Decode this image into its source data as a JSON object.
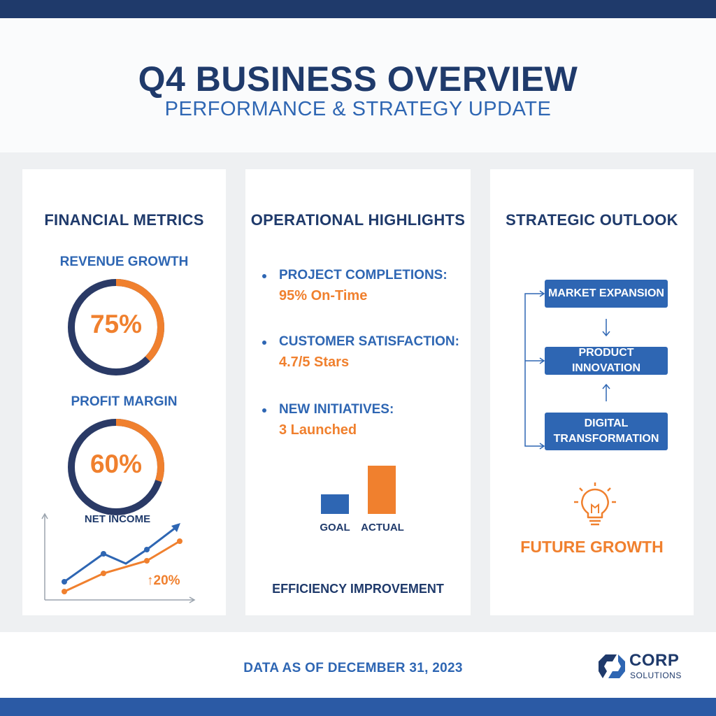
{
  "header": {
    "title": "Q4 BUSINESS OVERVIEW",
    "subtitle": "PERFORMANCE & STRATEGY UPDATE"
  },
  "financial": {
    "heading": "FINANCIAL METRICS",
    "revenue_label": "REVENUE GROWTH",
    "revenue_value": "75%",
    "revenue_fraction": 0.75,
    "profit_label": "PROFIT MARGIN",
    "profit_value": "60%",
    "profit_fraction": 0.6,
    "net_income_label": "NET INCOME",
    "net_income_change": "↑20%"
  },
  "operational": {
    "heading": "OPERATIONAL HIGHLIGHTS",
    "items": [
      {
        "label": "PROJECT COMPLETIONS:",
        "value": "95% On-Time"
      },
      {
        "label": "CUSTOMER SATISFACTION:",
        "value": "4.7/5 Stars"
      },
      {
        "label": "NEW INITIATIVES:",
        "value": "3 Launched"
      }
    ],
    "bar_labels": [
      "GOAL",
      "ACTUAL"
    ],
    "caption": "EFFICIENCY IMPROVEMENT"
  },
  "strategic": {
    "heading": "STRATEGIC OUTLOOK",
    "steps": [
      "MARKET EXPANSION",
      "PRODUCT INNOVATION",
      "DIGITAL TRANSFORMATION"
    ],
    "future_label": "FUTURE GROWTH",
    "future_icon": "lightbulb-icon"
  },
  "footer": {
    "note": "DATA AS OF DECEMBER 31, 2023",
    "logo_name": "CORP",
    "logo_sub": "SOLUTIONS"
  },
  "colors": {
    "navy": "#1f3a6b",
    "blue": "#2e66b3",
    "orange": "#f0802e"
  }
}
